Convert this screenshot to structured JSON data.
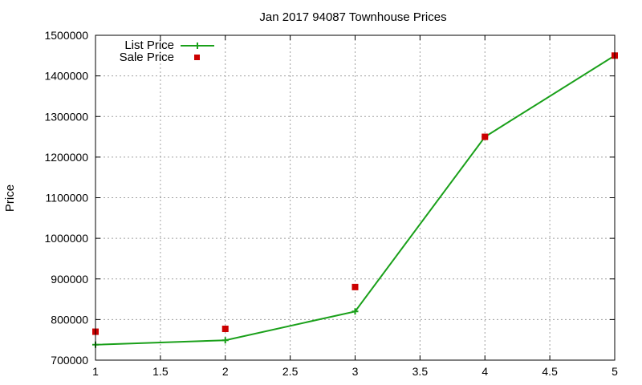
{
  "chart_data": {
    "type": "line",
    "title": "Jan 2017 94087 Townhouse Prices",
    "xlabel": "",
    "ylabel": "Price",
    "xlim": [
      1,
      5
    ],
    "ylim": [
      700000,
      1500000
    ],
    "xticks": [
      1,
      1.5,
      2,
      2.5,
      3,
      3.5,
      4,
      4.5,
      5
    ],
    "xtick_labels": [
      "1",
      "1.5",
      "2",
      "2.5",
      "3",
      "3.5",
      "4",
      "4.5",
      "5"
    ],
    "yticks": [
      700000,
      800000,
      900000,
      1000000,
      1100000,
      1200000,
      1300000,
      1400000,
      1500000
    ],
    "ytick_labels": [
      "700000",
      "800000",
      "900000",
      "1000000",
      "1100000",
      "1200000",
      "1300000",
      "1400000",
      "1500000"
    ],
    "grid": true,
    "legend_position": "top-left",
    "series": [
      {
        "name": "List Price",
        "style": "line-with-plus-markers",
        "color": "#1aa01a",
        "x": [
          1,
          2,
          3,
          4,
          5
        ],
        "y": [
          738000,
          749000,
          820000,
          1250000,
          1450000
        ]
      },
      {
        "name": "Sale Price",
        "style": "square-markers",
        "color": "#cc0000",
        "x": [
          1,
          2,
          3,
          4,
          5
        ],
        "y": [
          770000,
          777000,
          880000,
          1250000,
          1450000
        ]
      }
    ]
  }
}
